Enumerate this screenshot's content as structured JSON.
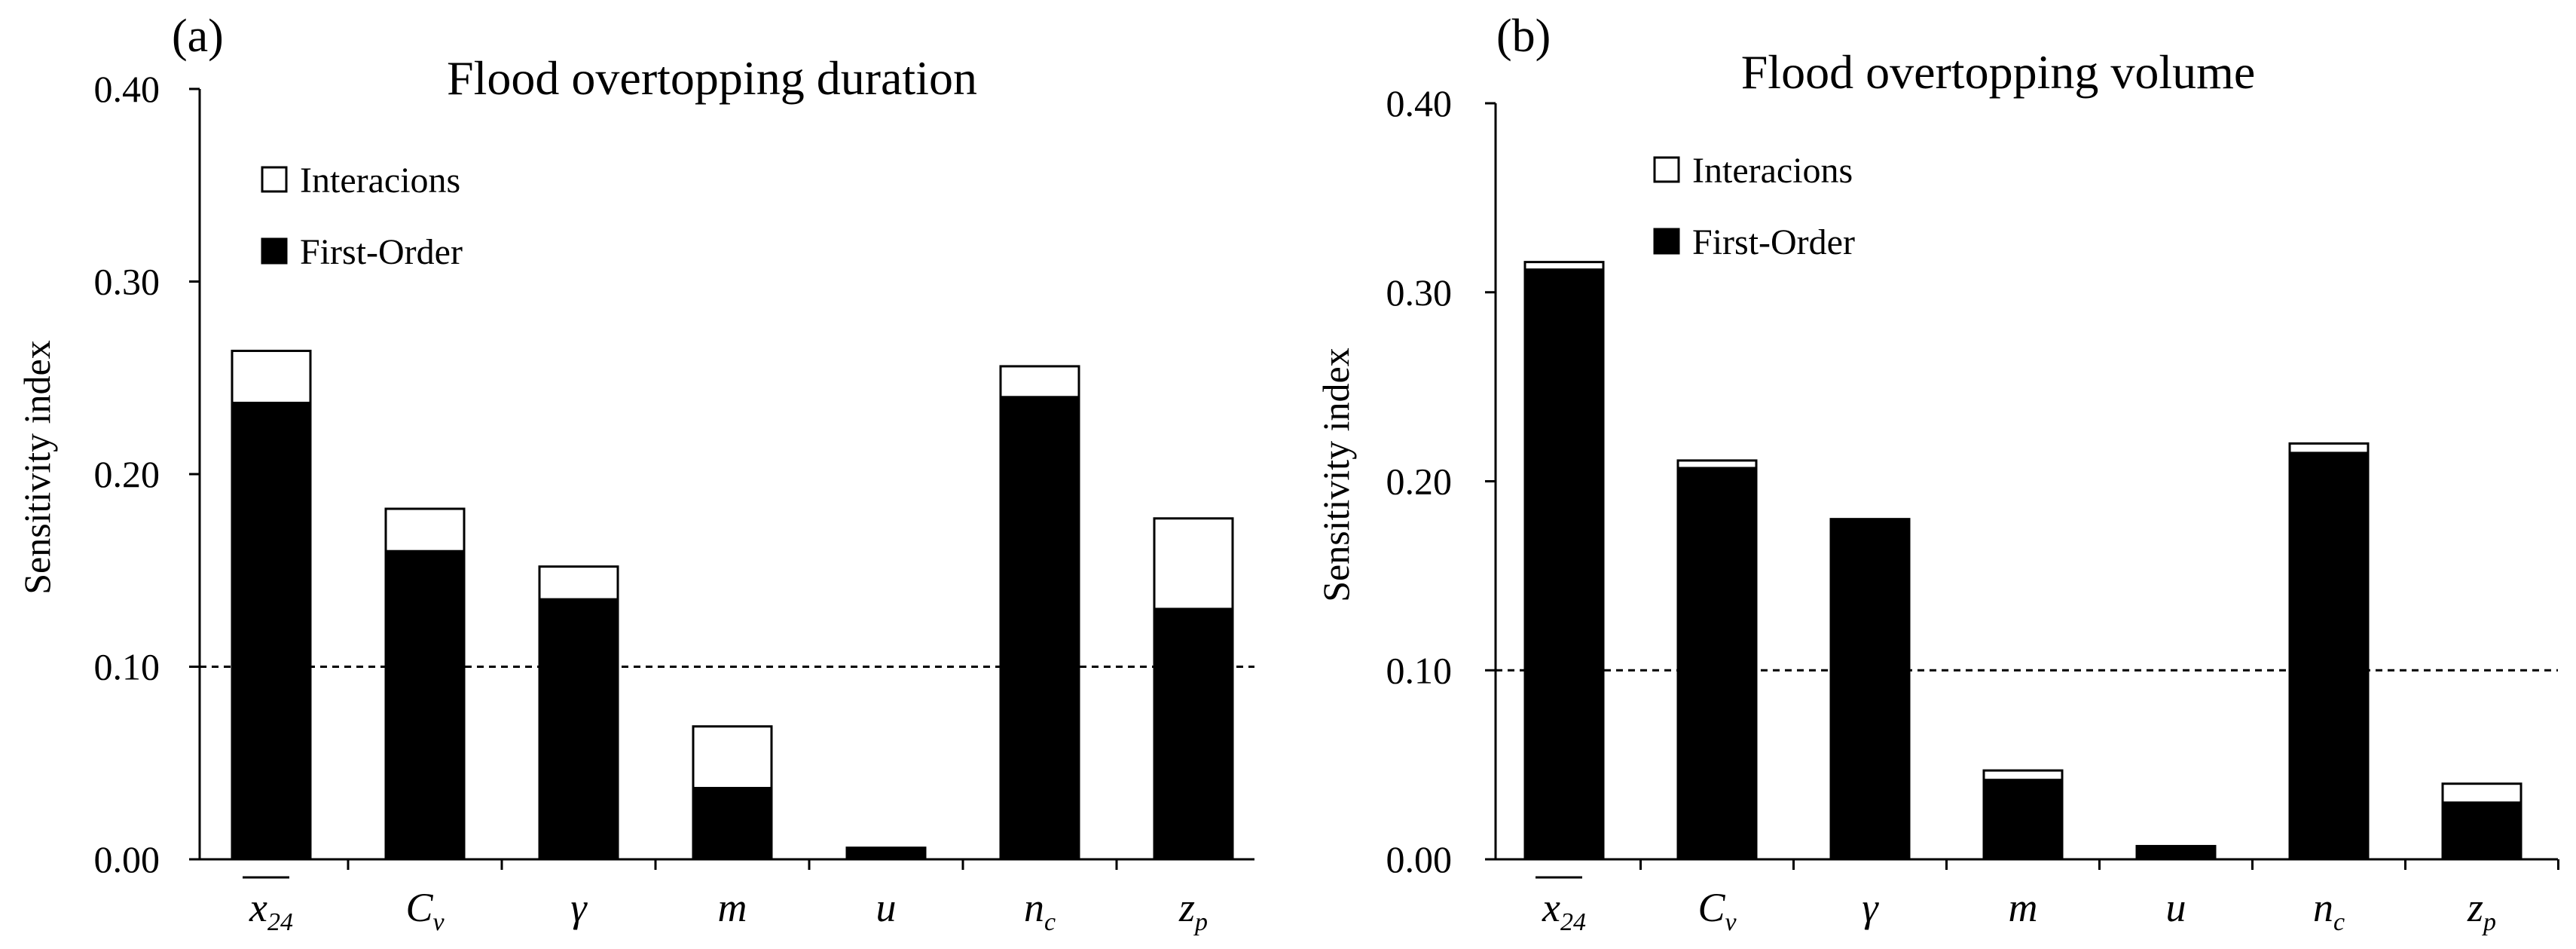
{
  "chart_data": [
    {
      "type": "bar",
      "stacked": true,
      "panel_label": "(a)",
      "title": "Flood overtopping duration",
      "xlabel": "",
      "ylabel": "Sensitivity  index",
      "ylim": [
        0,
        0.4
      ],
      "yticks": [
        "0.00",
        "0.10",
        "0.20",
        "0.30",
        "0.40"
      ],
      "reference_line": 0.1,
      "categories": [
        {
          "base": "x",
          "sub": "24",
          "overline": true
        },
        {
          "base": "C",
          "sub": "v"
        },
        {
          "base": "γ",
          "sub": ""
        },
        {
          "base": "m",
          "sub": ""
        },
        {
          "base": "u",
          "sub": ""
        },
        {
          "base": "n",
          "sub": "c"
        },
        {
          "base": "z",
          "sub": "p"
        }
      ],
      "series": [
        {
          "name": "First-Order",
          "color": "#000000",
          "values": [
            0.237,
            0.16,
            0.135,
            0.037,
            0.006,
            0.24,
            0.13
          ]
        },
        {
          "name": "Interacions",
          "color": "#ffffff",
          "values": [
            0.027,
            0.022,
            0.017,
            0.032,
            0.0,
            0.016,
            0.047
          ]
        }
      ],
      "legend": [
        "Interacions",
        "First-Order"
      ]
    },
    {
      "type": "bar",
      "stacked": true,
      "panel_label": "(b)",
      "title": "Flood overtopping volume",
      "xlabel": "",
      "ylabel": "Sensitivity  index",
      "ylim": [
        0,
        0.4
      ],
      "yticks": [
        "0.00",
        "0.10",
        "0.20",
        "0.30",
        "0.40"
      ],
      "reference_line": 0.1,
      "categories": [
        {
          "base": "x",
          "sub": "24",
          "overline": true
        },
        {
          "base": "C",
          "sub": "v"
        },
        {
          "base": "γ",
          "sub": ""
        },
        {
          "base": "m",
          "sub": ""
        },
        {
          "base": "u",
          "sub": ""
        },
        {
          "base": "n",
          "sub": "c"
        },
        {
          "base": "z",
          "sub": "p"
        }
      ],
      "series": [
        {
          "name": "First-Order",
          "color": "#000000",
          "values": [
            0.312,
            0.207,
            0.18,
            0.042,
            0.007,
            0.215,
            0.03
          ]
        },
        {
          "name": "Interacions",
          "color": "#ffffff",
          "values": [
            0.004,
            0.004,
            0.0,
            0.005,
            0.0,
            0.005,
            0.01
          ]
        }
      ],
      "legend": [
        "Interacions",
        "First-Order"
      ]
    }
  ]
}
